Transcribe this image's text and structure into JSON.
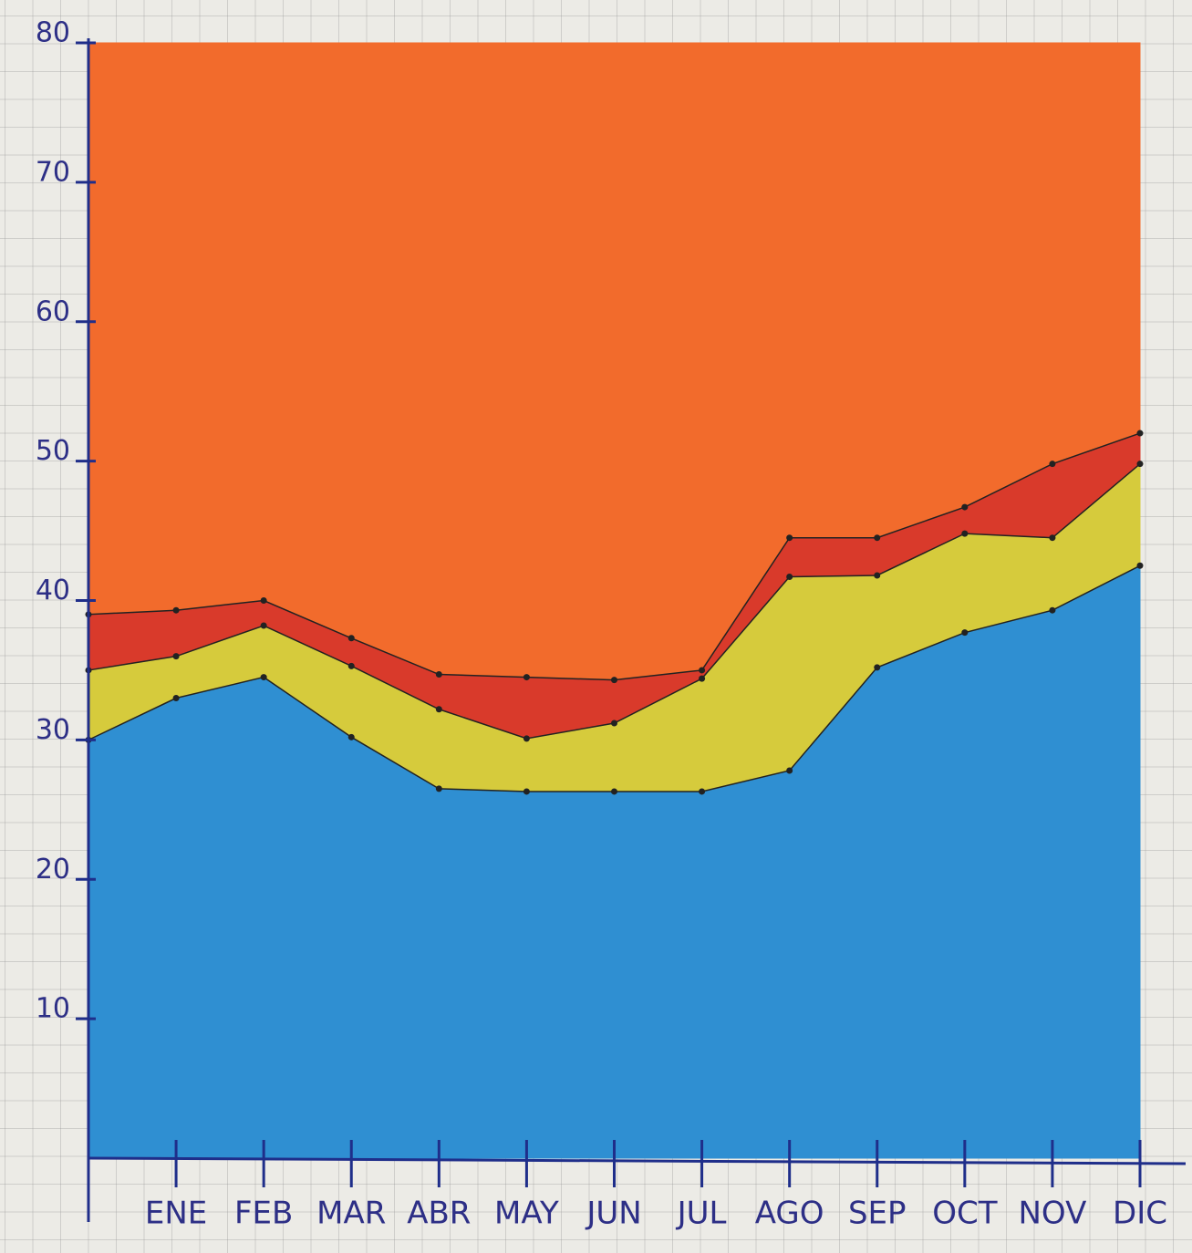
{
  "chart_data": {
    "type": "stacked_area",
    "categories": [
      null,
      "ENE",
      "FEB",
      "MAR",
      "ABR",
      "MAY",
      "JUN",
      "JUL",
      "AGO",
      "SEP",
      "OCT",
      "NOV",
      "DIC"
    ],
    "series": [
      {
        "color": "#2f8fd2",
        "values": [
          30,
          33,
          34.5,
          30.2,
          26.5,
          26.3,
          26.3,
          26.3,
          27.8,
          35.2,
          37.7,
          39.3,
          42.5
        ]
      },
      {
        "color": "#d6cb3c",
        "values": [
          5,
          3,
          3.7,
          5.1,
          5.7,
          3.8,
          4.9,
          8.1,
          13.9,
          6.6,
          7.1,
          5.2,
          7.3
        ]
      },
      {
        "color": "#d93a2b",
        "values": [
          4,
          3.3,
          1.8,
          2,
          2.5,
          4.4,
          3.1,
          0.6,
          2.8,
          2.7,
          1.9,
          5.3,
          2.2
        ]
      },
      {
        "color": "#f26b2c",
        "values": [
          41,
          40.7,
          40,
          42.7,
          45.3,
          45.5,
          45.7,
          45,
          35.5,
          35.5,
          33.3,
          30.2,
          28
        ]
      }
    ],
    "ylim": [
      0,
      80
    ],
    "yticks": [
      10,
      20,
      30,
      40,
      50,
      60,
      70,
      80
    ]
  }
}
